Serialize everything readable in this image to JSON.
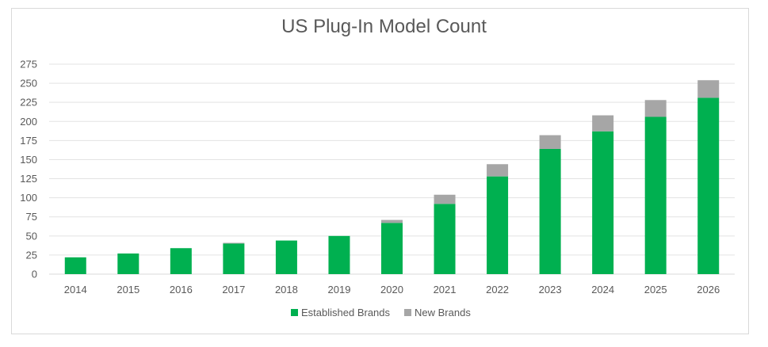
{
  "chart_data": {
    "type": "bar",
    "stacked": true,
    "title": "US Plug-In Model Count",
    "xlabel": "",
    "ylabel": "",
    "categories": [
      "2014",
      "2015",
      "2016",
      "2017",
      "2018",
      "2019",
      "2020",
      "2021",
      "2022",
      "2023",
      "2024",
      "2025",
      "2026"
    ],
    "series": [
      {
        "name": "Established Brands",
        "color": "#00b050",
        "values": [
          22,
          27,
          34,
          40,
          44,
          50,
          67,
          92,
          128,
          164,
          187,
          206,
          231
        ]
      },
      {
        "name": "New Brands",
        "color": "#a6a6a6",
        "values": [
          0,
          0,
          0,
          1,
          0,
          0,
          4,
          12,
          16,
          18,
          21,
          22,
          23
        ]
      }
    ],
    "ylim": [
      0,
      275
    ],
    "yticks": [
      0,
      25,
      50,
      75,
      100,
      125,
      150,
      175,
      200,
      225,
      250,
      275
    ],
    "grid": true,
    "legend_position": "bottom"
  }
}
